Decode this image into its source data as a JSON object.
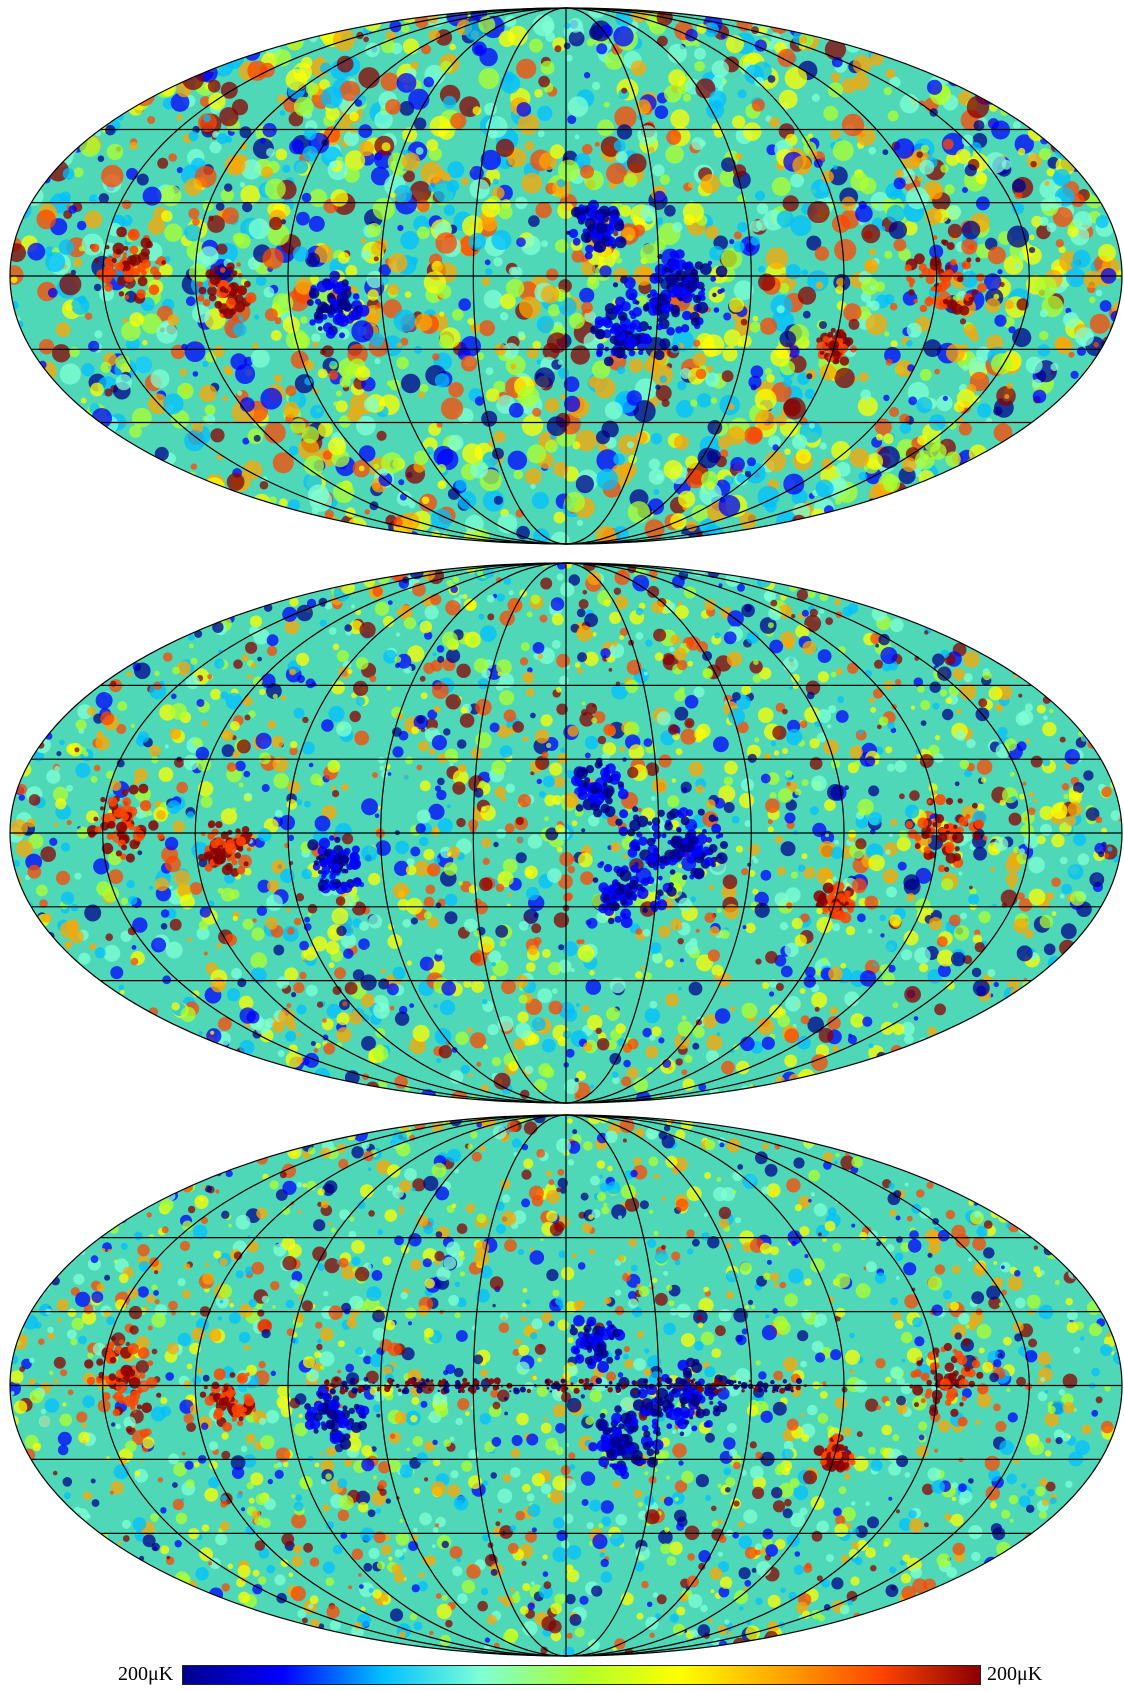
{
  "maps": [
    {
      "id": "top",
      "projection": "mollweide",
      "grid": true,
      "cold_spot": "south-center",
      "hot_band": "galactic-plane-edges"
    },
    {
      "id": "middle",
      "projection": "mollweide",
      "grid": true,
      "cold_spot": "south-center"
    },
    {
      "id": "bottom",
      "projection": "mollweide",
      "grid": true,
      "cold_spot": "south-center",
      "galactic_plane_residual": true
    }
  ],
  "colorbar": {
    "min_label": "200μK",
    "max_label": "200μK",
    "colormap": [
      "#00008b",
      "#0000ff",
      "#00bfff",
      "#7fffd4",
      "#adff2f",
      "#ffff00",
      "#ffa500",
      "#ff4500",
      "#8b0000"
    ]
  },
  "colors": {
    "background_field": "#4fd8b8",
    "grid_line": "#000000"
  }
}
